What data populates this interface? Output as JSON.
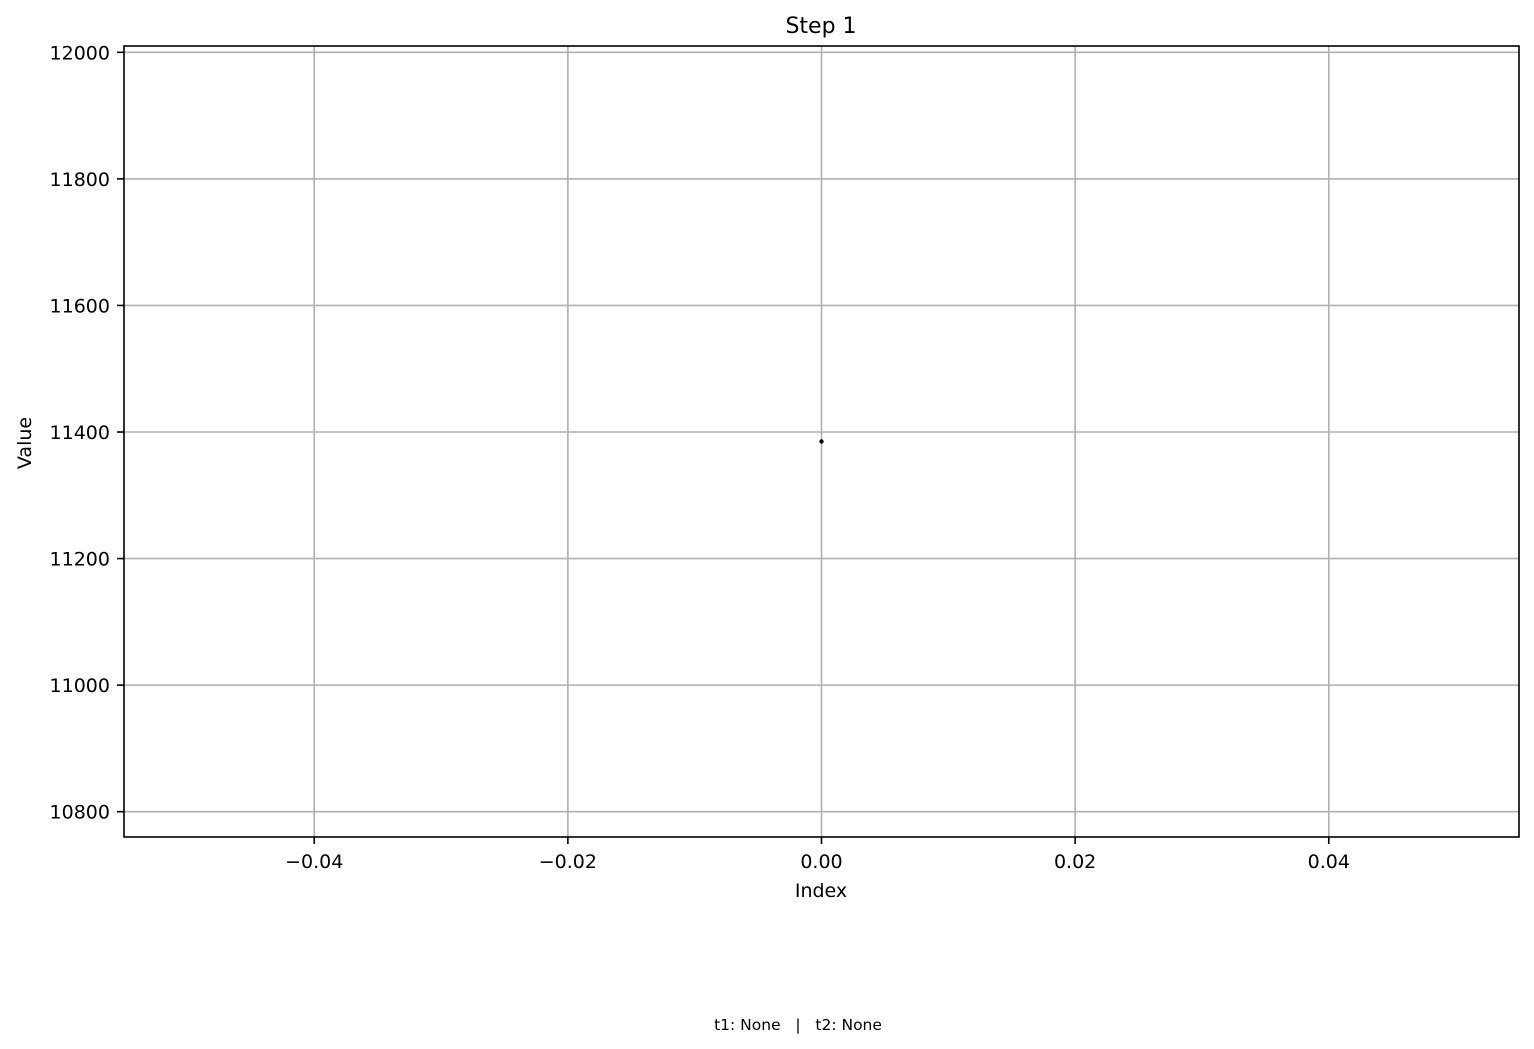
{
  "chart_data": {
    "type": "scatter",
    "title": "Step 1",
    "xlabel": "Index",
    "ylabel": "Value",
    "xlim": [
      -0.055,
      0.055
    ],
    "ylim": [
      10760,
      12010
    ],
    "x_ticks": [
      -0.04,
      -0.02,
      0.0,
      0.02,
      0.04
    ],
    "x_tick_labels": [
      "−0.04",
      "−0.02",
      "0.00",
      "0.02",
      "0.04"
    ],
    "y_ticks": [
      10800,
      11000,
      11200,
      11400,
      11600,
      11800,
      12000
    ],
    "y_tick_labels": [
      "10800",
      "11000",
      "11200",
      "11400",
      "11600",
      "11800",
      "12000"
    ],
    "grid": true,
    "series": [
      {
        "points": [
          {
            "x": 0.0,
            "y": 11385
          }
        ],
        "color": "#000000"
      }
    ]
  },
  "footer": {
    "text": "t1: None   |   t2: None"
  }
}
